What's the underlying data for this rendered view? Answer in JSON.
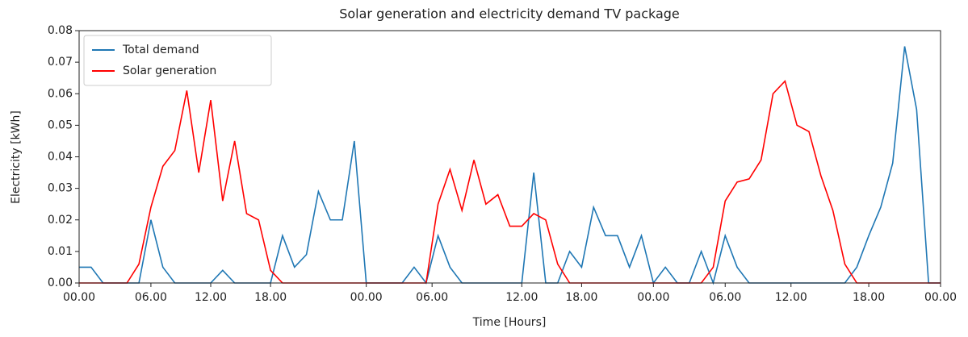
{
  "chart_data": {
    "type": "line",
    "title": "Solar generation and electricity demand TV package",
    "x_label": "Time [Hours]",
    "y_label": "Electricity [kWh]",
    "x": [
      0,
      1,
      2,
      3,
      4,
      5,
      6,
      7,
      8,
      9,
      10,
      11,
      12,
      13,
      14,
      15,
      16,
      17,
      18,
      19,
      20,
      21,
      22,
      23,
      24,
      25,
      26,
      27,
      28,
      29,
      30,
      31,
      32,
      33,
      34,
      35,
      36,
      37,
      38,
      39,
      40,
      41,
      42,
      43,
      44,
      45,
      46,
      47,
      48,
      49,
      50,
      51,
      52,
      53,
      54,
      55,
      56,
      57,
      58,
      59,
      60,
      61,
      62,
      63,
      64,
      65,
      66,
      67,
      68,
      69,
      70,
      71,
      72
    ],
    "series": [
      {
        "name": "Total demand",
        "color": "#1f77b4",
        "values": [
          0.005,
          0.005,
          0,
          0,
          0,
          0,
          0.02,
          0.005,
          0,
          0,
          0,
          0,
          0.004,
          0,
          0,
          0,
          0,
          0.015,
          0.005,
          0.009,
          0.029,
          0.02,
          0.02,
          0.045,
          0,
          0,
          0,
          0,
          0.005,
          0,
          0.015,
          0.005,
          0,
          0,
          0,
          0,
          0,
          0,
          0.035,
          0,
          0,
          0.01,
          0.005,
          0.024,
          0.015,
          0.015,
          0.005,
          0.015,
          0,
          0.005,
          0,
          0,
          0.01,
          0,
          0.015,
          0.005,
          0,
          0,
          0,
          0,
          0,
          0,
          0,
          0,
          0,
          0.005,
          0.015,
          0.024,
          0.038,
          0.075,
          0.055,
          0,
          0
        ]
      },
      {
        "name": "Solar generation",
        "color": "#ff0000",
        "values": [
          0,
          0,
          0,
          0,
          0,
          0.006,
          0.024,
          0.037,
          0.042,
          0.061,
          0.035,
          0.058,
          0.026,
          0.045,
          0.022,
          0.02,
          0.004,
          0,
          0,
          0,
          0,
          0,
          0,
          0,
          0,
          0,
          0,
          0,
          0,
          0,
          0.025,
          0.036,
          0.023,
          0.039,
          0.025,
          0.028,
          0.018,
          0.018,
          0.022,
          0.02,
          0.006,
          0,
          0,
          0,
          0,
          0,
          0,
          0,
          0,
          0,
          0,
          0,
          0,
          0.005,
          0.026,
          0.032,
          0.033,
          0.039,
          0.06,
          0.064,
          0.05,
          0.048,
          0.034,
          0.023,
          0.006,
          0,
          0,
          0,
          0,
          0,
          0,
          0,
          0
        ]
      }
    ],
    "xlim": [
      0,
      72
    ],
    "xticks": [
      {
        "value": 0,
        "label": "00.00"
      },
      {
        "value": 6,
        "label": "06.00"
      },
      {
        "value": 11,
        "label": "12.00"
      },
      {
        "value": 16,
        "label": "18.00"
      },
      {
        "value": 24,
        "label": "00.00"
      },
      {
        "value": 29.5,
        "label": "06.00"
      },
      {
        "value": 37,
        "label": "12.00"
      },
      {
        "value": 42,
        "label": "18.00"
      },
      {
        "value": 48,
        "label": "00.00"
      },
      {
        "value": 54,
        "label": "06.00"
      },
      {
        "value": 59.5,
        "label": "12.00"
      },
      {
        "value": 66,
        "label": "18.00"
      },
      {
        "value": 72,
        "label": "00.00"
      }
    ],
    "ylim": [
      0,
      0.08
    ],
    "yticks": [
      {
        "value": 0,
        "label": "0.00"
      },
      {
        "value": 0.01,
        "label": "0.01"
      },
      {
        "value": 0.02,
        "label": "0.02"
      },
      {
        "value": 0.03,
        "label": "0.03"
      },
      {
        "value": 0.04,
        "label": "0.04"
      },
      {
        "value": 0.05,
        "label": "0.05"
      },
      {
        "value": 0.06,
        "label": "0.06"
      },
      {
        "value": 0.07,
        "label": "0.07"
      },
      {
        "value": 0.08,
        "label": "0.08"
      }
    ],
    "legend": "upper left"
  }
}
